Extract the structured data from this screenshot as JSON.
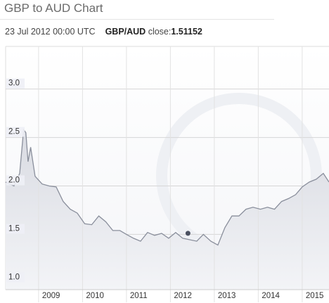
{
  "header": {
    "title": "GBP to AUD Chart",
    "datetime": "23 Jul 2012 00:00 UTC",
    "pair": "GBP/AUD",
    "close_label": "close:"
  },
  "chart_data": {
    "type": "line",
    "color": "#8a8f9c",
    "grid": true,
    "xlim": [
      2008.25,
      2015.61
    ],
    "ylim": [
      0.93,
      3.44
    ],
    "xticks": [
      2009,
      2010,
      2011,
      2012,
      2013,
      2014,
      2015
    ],
    "yticks": [
      {
        "value": 1,
        "label": "1.0"
      },
      1.5,
      {
        "value": 2,
        "label": "2.0"
      },
      2.5,
      {
        "value": 3,
        "label": "3.0"
      }
    ],
    "x": [
      2008.25,
      2008.44,
      2008.57,
      2008.66,
      2008.71,
      2008.76,
      2008.82,
      2008.92,
      2009.08,
      2009.24,
      2009.4,
      2009.56,
      2009.72,
      2009.88,
      2010.05,
      2010.21,
      2010.37,
      2010.53,
      2010.69,
      2010.85,
      2011.0,
      2011.16,
      2011.32,
      2011.48,
      2011.64,
      2011.8,
      2011.96,
      2012.12,
      2012.28,
      2012.6,
      2012.75,
      2012.92,
      2013.08,
      2013.24,
      2013.4,
      2013.56,
      2013.72,
      2013.88,
      2014.05,
      2014.21,
      2014.37,
      2014.53,
      2014.69,
      2014.85,
      2015.0,
      2015.16,
      2015.32,
      2015.48,
      2015.61
    ],
    "values": [
      2.04,
      2.0,
      2.13,
      2.58,
      2.55,
      2.25,
      2.4,
      2.1,
      2.02,
      2.0,
      1.99,
      1.84,
      1.76,
      1.72,
      1.61,
      1.6,
      1.69,
      1.63,
      1.54,
      1.54,
      1.5,
      1.46,
      1.43,
      1.52,
      1.49,
      1.51,
      1.46,
      1.52,
      1.46,
      1.43,
      1.5,
      1.43,
      1.39,
      1.57,
      1.69,
      1.69,
      1.76,
      1.78,
      1.76,
      1.78,
      1.76,
      1.84,
      1.87,
      1.91,
      1.99,
      2.04,
      2.07,
      2.13,
      2.04
    ],
    "marker": {
      "x": 2012.4,
      "value": 1.51152
    }
  }
}
